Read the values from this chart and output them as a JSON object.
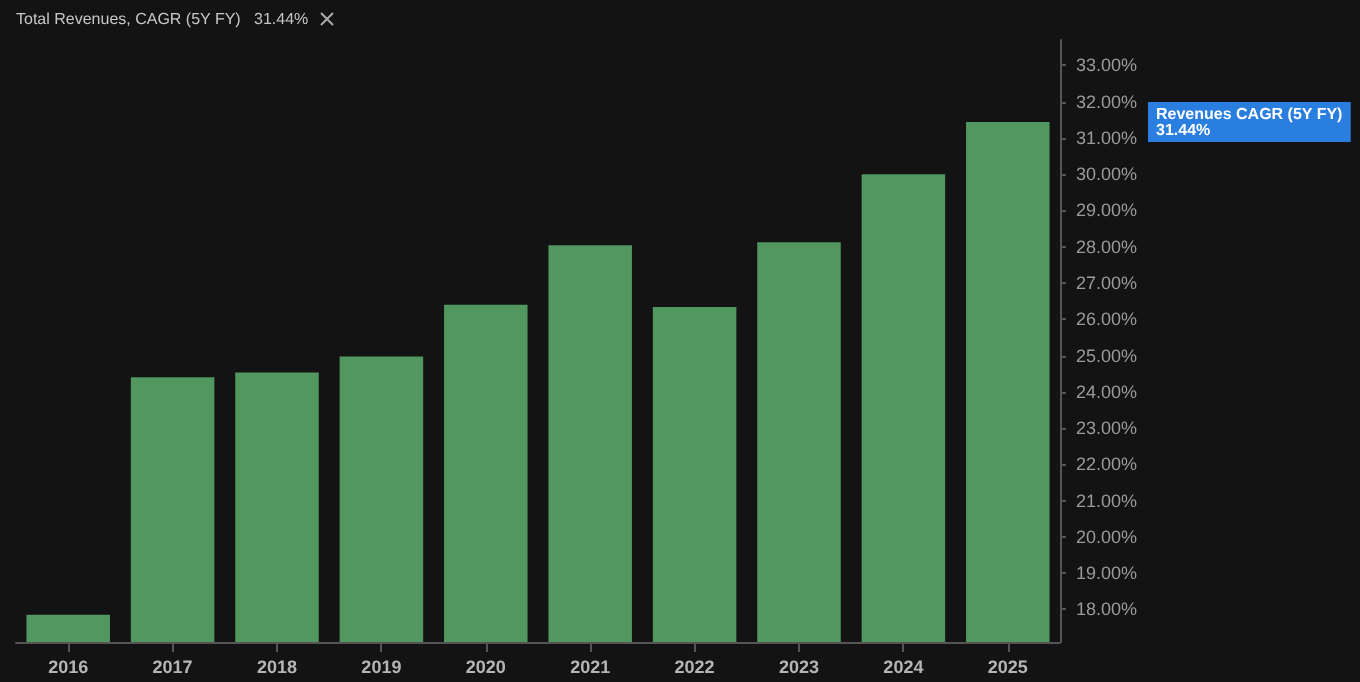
{
  "chart_data": {
    "type": "bar",
    "title": "Total Revenues, CAGR (5Y FY)   31.44%",
    "categories": [
      "2016",
      "2017",
      "2018",
      "2019",
      "2020",
      "2021",
      "2022",
      "2023",
      "2024",
      "2025"
    ],
    "values": [
      17.85,
      24.4,
      24.53,
      24.97,
      26.4,
      28.04,
      26.34,
      28.12,
      30.0,
      31.44
    ],
    "color": "#52975f",
    "ylim": [
      17.1,
      33.7
    ],
    "yticks": [
      {
        "value": 18,
        "label": "18.00%"
      },
      {
        "value": 19,
        "label": "19.00%"
      },
      {
        "value": 20,
        "label": "20.00%"
      },
      {
        "value": 21,
        "label": "21.00%"
      },
      {
        "value": 22,
        "label": "22.00%"
      },
      {
        "value": 23,
        "label": "23.00%"
      },
      {
        "value": 24,
        "label": "24.00%"
      },
      {
        "value": 25,
        "label": "25.00%"
      },
      {
        "value": 26,
        "label": "26.00%"
      },
      {
        "value": 27,
        "label": "27.00%"
      },
      {
        "value": 28,
        "label": "28.00%"
      },
      {
        "value": 29,
        "label": "29.00%"
      },
      {
        "value": 30,
        "label": "30.00%"
      },
      {
        "value": 31,
        "label": "31.00%"
      },
      {
        "value": 32,
        "label": "32.00%"
      },
      {
        "value": 33,
        "label": "33.00%"
      }
    ],
    "annotations": [
      "Revenues CAGR (5Y FY)\n31.44%"
    ],
    "grid": false
  }
}
